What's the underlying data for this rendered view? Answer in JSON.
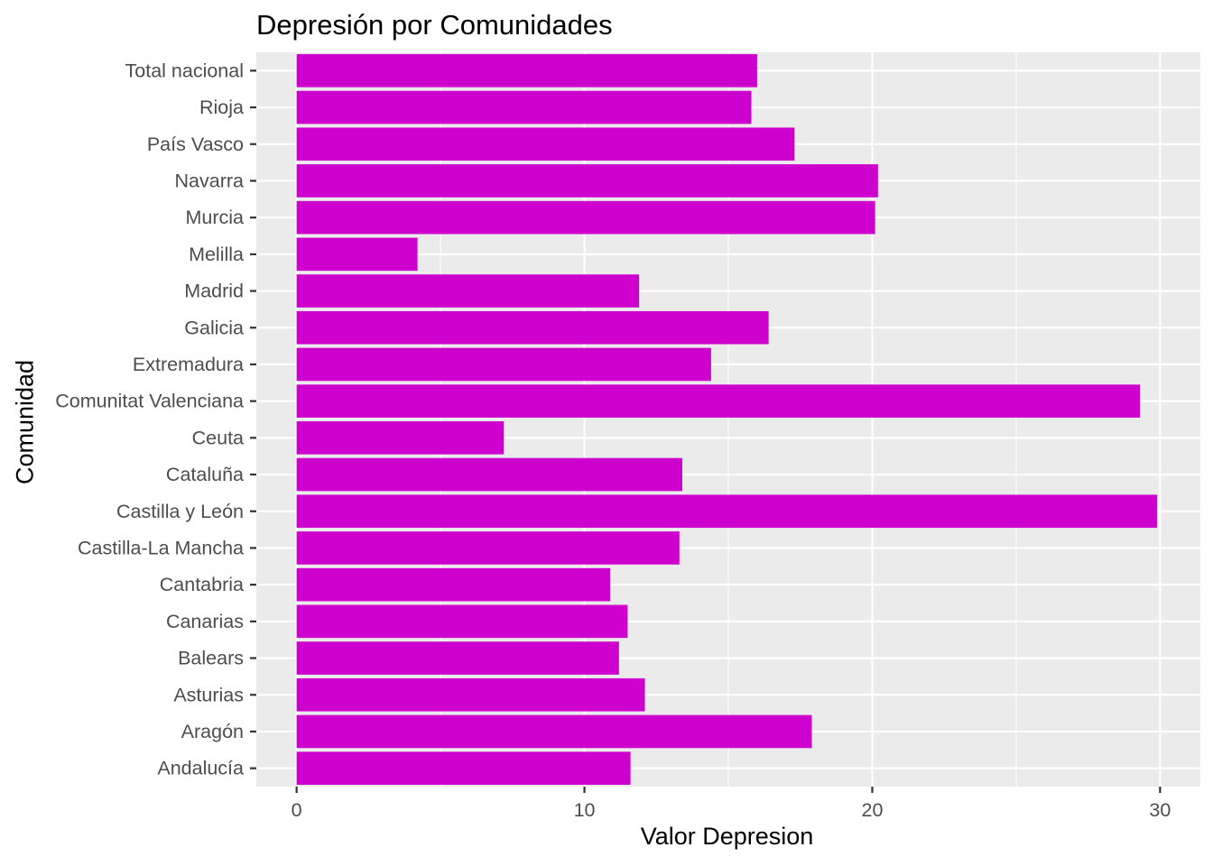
{
  "chart_data": {
    "type": "bar",
    "orientation": "horizontal",
    "title": "Depresión por Comunidades",
    "xlabel": "Valor Depresion",
    "ylabel": "Comunidad",
    "categories": [
      "Andalucía",
      "Aragón",
      "Asturias",
      "Balears",
      "Canarias",
      "Cantabria",
      "Castilla-La Mancha",
      "Castilla y León",
      "Cataluña",
      "Ceuta",
      "Comunitat Valenciana",
      "Extremadura",
      "Galicia",
      "Madrid",
      "Melilla",
      "Murcia",
      "Navarra",
      "País Vasco",
      "Rioja",
      "Total nacional"
    ],
    "values": [
      11.6,
      17.9,
      12.1,
      11.2,
      11.5,
      10.9,
      13.3,
      29.9,
      13.4,
      7.2,
      29.3,
      14.4,
      16.4,
      11.9,
      4.2,
      20.1,
      20.2,
      17.3,
      15.8,
      16.0
    ],
    "xlim": [
      -1.4,
      31.4
    ],
    "xticks": [
      0,
      10,
      20,
      30
    ],
    "grid": true,
    "bar_color": "#CD00CD",
    "panel_background": "#EBEBEB",
    "grid_color": "#FFFFFF"
  }
}
